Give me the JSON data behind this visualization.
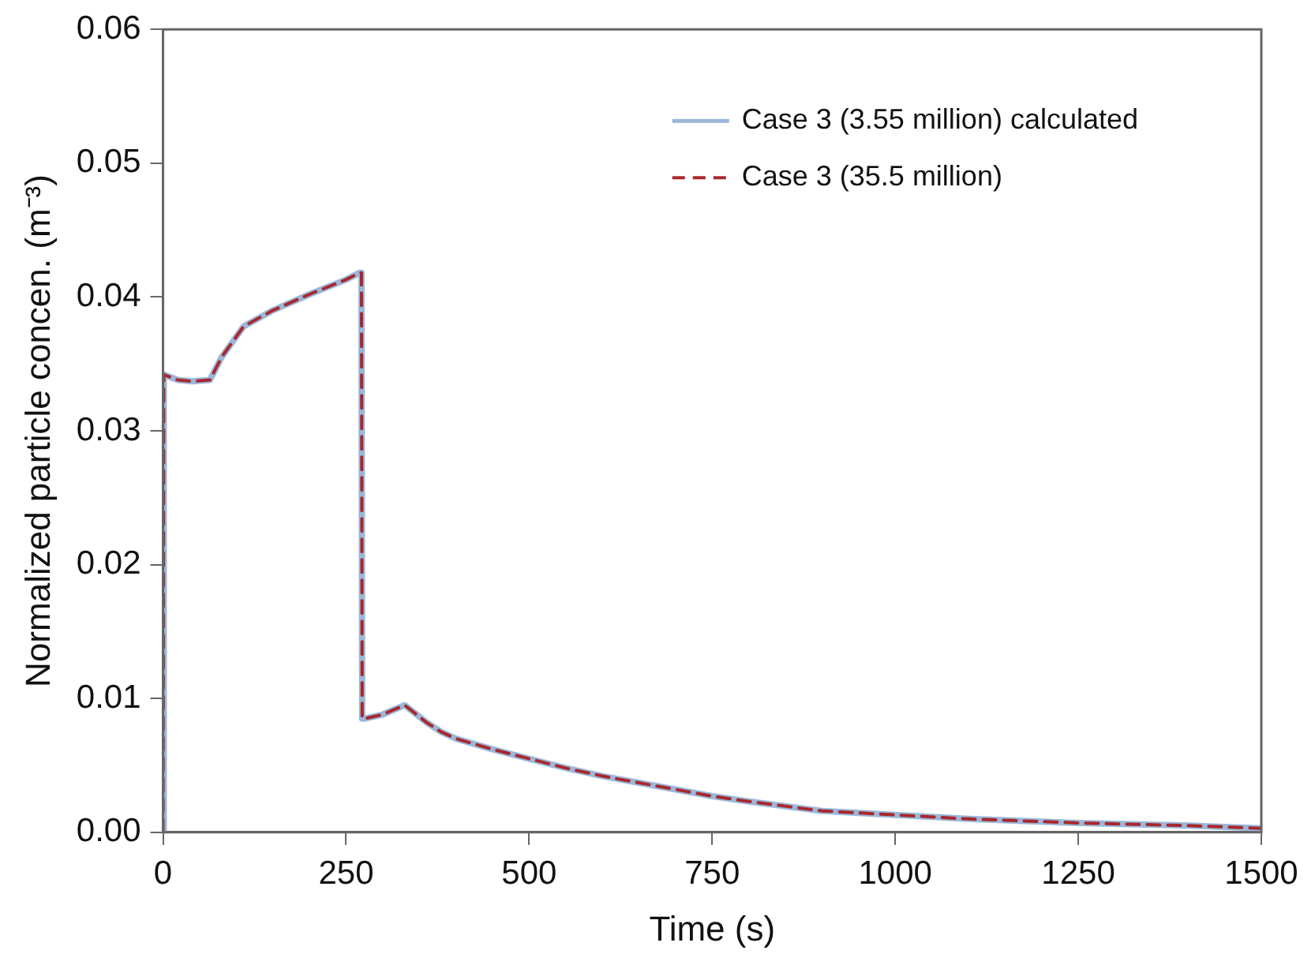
{
  "chart_data": {
    "type": "line",
    "xlabel": "Time (s)",
    "ylabel": "Normalized particle concen. (m⁻³)",
    "x": [
      0,
      1,
      20,
      40,
      64,
      80,
      110,
      150,
      200,
      250,
      268,
      271,
      272,
      276,
      300,
      330,
      360,
      380,
      400,
      450,
      500,
      550,
      600,
      700,
      750,
      800,
      900,
      1000,
      1100,
      1250,
      1400,
      1500
    ],
    "series": [
      {
        "name": "Case 3 (3.55 million) calculated",
        "color": "#9bb7d9",
        "line_style": "solid",
        "values": [
          0,
          0.0342,
          0.0338,
          0.0337,
          0.0338,
          0.0355,
          0.0378,
          0.039,
          0.0402,
          0.0413,
          0.0418,
          0.0418,
          0.0085,
          0.0085,
          0.0088,
          0.0095,
          0.0082,
          0.0075,
          0.007,
          0.0062,
          0.0055,
          0.0048,
          0.0042,
          0.0032,
          0.0027,
          0.0023,
          0.0016,
          0.0013,
          0.001,
          0.0007,
          0.0005,
          0.0003
        ]
      },
      {
        "name": "Case 3 (35.5 million)",
        "color": "#a8282d",
        "line_style": "dashed",
        "values": [
          0,
          0.0342,
          0.0338,
          0.0337,
          0.0338,
          0.0355,
          0.0378,
          0.039,
          0.0402,
          0.0413,
          0.0418,
          0.0418,
          0.0085,
          0.0085,
          0.0088,
          0.0095,
          0.0082,
          0.0075,
          0.007,
          0.0062,
          0.0055,
          0.0048,
          0.0042,
          0.0032,
          0.0027,
          0.0023,
          0.0016,
          0.0013,
          0.001,
          0.0007,
          0.0005,
          0.0003
        ]
      }
    ],
    "xlim": [
      0,
      1500
    ],
    "xticks": [
      0,
      250,
      500,
      750,
      1000,
      1250,
      1500
    ],
    "ylim": [
      0,
      0.06
    ],
    "yticks": [
      {
        "value": 0,
        "label": "0.00"
      },
      {
        "value": 0.01,
        "label": "0.01"
      },
      {
        "value": 0.02,
        "label": "0.02"
      },
      {
        "value": 0.03,
        "label": "0.03"
      },
      {
        "value": 0.04,
        "label": "0.04"
      },
      {
        "value": 0.05,
        "label": "0.05"
      },
      {
        "value": 0.06,
        "label": "0.06"
      }
    ],
    "grid": false,
    "legend": "top right",
    "marker": "none"
  }
}
